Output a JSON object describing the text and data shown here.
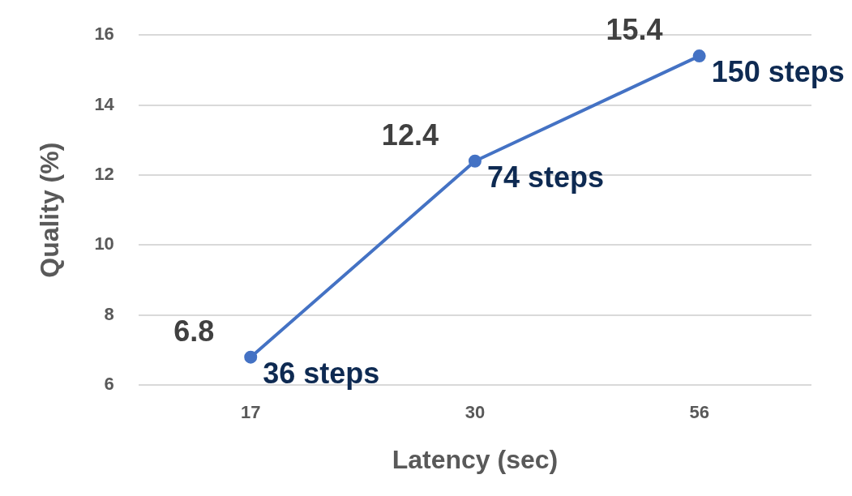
{
  "chart_data": {
    "type": "line",
    "xlabel": "Latency (sec)",
    "ylabel": "Quality (%)",
    "categories": [
      "17",
      "30",
      "56"
    ],
    "series": [
      {
        "color": "#4472c4",
        "values": [
          6.8,
          12.4,
          15.4
        ]
      }
    ],
    "ylim": [
      6,
      16
    ],
    "yticks": [
      6,
      8,
      10,
      12,
      14,
      16
    ],
    "grid": "y",
    "legend": false,
    "marker": "circle",
    "line_style": "solid",
    "data_labels": true,
    "annotations": [
      {
        "text": "36 steps",
        "x": "17",
        "y": 6.8
      },
      {
        "text": "74 steps",
        "x": "30",
        "y": 12.4
      },
      {
        "text": "150 steps",
        "x": "56",
        "y": 15.4
      }
    ]
  }
}
